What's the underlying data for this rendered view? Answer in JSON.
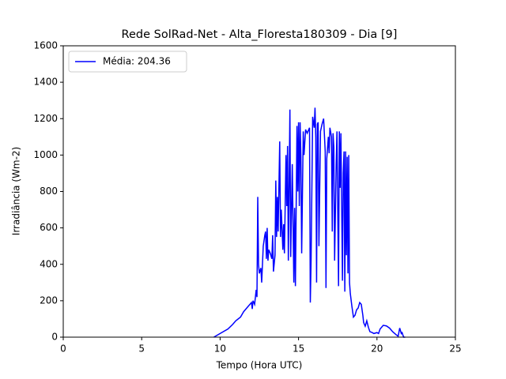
{
  "chart_data": {
    "type": "line",
    "title": "Rede SolRad-Net - Alta_Floresta180309 - Dia [9]",
    "x_label": "Tempo (Hora UTC)",
    "y_label": "Irradiância (Wm-2)",
    "x": [
      9.6,
      10.0,
      10.5,
      10.8,
      11.0,
      11.3,
      11.5,
      11.8,
      12.0,
      12.05,
      12.1,
      12.2,
      12.3,
      12.35,
      12.4,
      12.45,
      12.5,
      12.6,
      12.65,
      12.75,
      12.85,
      12.9,
      12.95,
      13.0,
      13.05,
      13.1,
      13.2,
      13.3,
      13.35,
      13.4,
      13.5,
      13.55,
      13.6,
      13.65,
      13.7,
      13.8,
      13.85,
      13.9,
      14.0,
      14.05,
      14.1,
      14.2,
      14.25,
      14.3,
      14.35,
      14.45,
      14.5,
      14.6,
      14.7,
      14.75,
      14.8,
      14.9,
      14.95,
      15.0,
      15.05,
      15.1,
      15.15,
      15.2,
      15.3,
      15.35,
      15.45,
      15.55,
      15.7,
      15.75,
      15.8,
      15.9,
      16.0,
      16.05,
      16.1,
      16.15,
      16.2,
      16.25,
      16.3,
      16.4,
      16.5,
      16.6,
      16.7,
      16.75,
      16.8,
      16.9,
      16.95,
      17.0,
      17.1,
      17.15,
      17.2,
      17.25,
      17.3,
      17.4,
      17.45,
      17.55,
      17.6,
      17.65,
      17.7,
      17.8,
      17.85,
      17.9,
      17.95,
      18.0,
      18.05,
      18.1,
      18.15,
      18.2,
      18.25,
      18.3,
      18.4,
      18.5,
      18.6,
      18.7,
      18.8,
      18.9,
      19.0,
      19.1,
      19.15,
      19.25,
      19.35,
      19.45,
      19.55,
      19.7,
      19.8,
      20.0,
      20.1,
      20.2,
      20.4,
      20.6,
      20.8,
      21.0,
      21.2,
      21.35,
      21.45,
      21.55,
      21.6,
      21.7,
      21.8
    ],
    "series": [
      {
        "name": "Média: 204.36",
        "color": "#0000ff",
        "values": [
          0,
          20,
          45,
          70,
          90,
          110,
          140,
          170,
          190,
          155,
          200,
          180,
          260,
          220,
          770,
          400,
          350,
          380,
          300,
          500,
          560,
          580,
          430,
          600,
          420,
          480,
          460,
          430,
          560,
          360,
          450,
          860,
          550,
          770,
          580,
          1075,
          550,
          700,
          480,
          620,
          460,
          1000,
          720,
          1050,
          420,
          1250,
          440,
          950,
          300,
          710,
          280,
          1160,
          800,
          1180,
          720,
          1180,
          990,
          460,
          1130,
          1000,
          1140,
          1120,
          1150,
          190,
          420,
          1210,
          1150,
          1260,
          1100,
          300,
          1170,
          1180,
          500,
          1130,
          1170,
          1200,
          1020,
          270,
          980,
          1100,
          1010,
          1150,
          1100,
          580,
          1120,
          1040,
          420,
          950,
          1130,
          280,
          1130,
          820,
          1120,
          310,
          900,
          1020,
          250,
          1020,
          450,
          990,
          350,
          1000,
          300,
          240,
          170,
          110,
          120,
          150,
          160,
          190,
          180,
          120,
          80,
          60,
          90,
          55,
          30,
          25,
          20,
          25,
          20,
          45,
          65,
          62,
          50,
          30,
          15,
          5,
          50,
          20,
          25,
          0,
          0
        ]
      }
    ],
    "xlim": [
      0,
      25
    ],
    "xticks": [
      0,
      5,
      10,
      15,
      20,
      25
    ],
    "ylim": [
      0,
      1600
    ],
    "yticks": [
      0,
      200,
      400,
      600,
      800,
      1000,
      1200,
      1400,
      1600
    ],
    "grid": false,
    "legend": "upper left"
  }
}
